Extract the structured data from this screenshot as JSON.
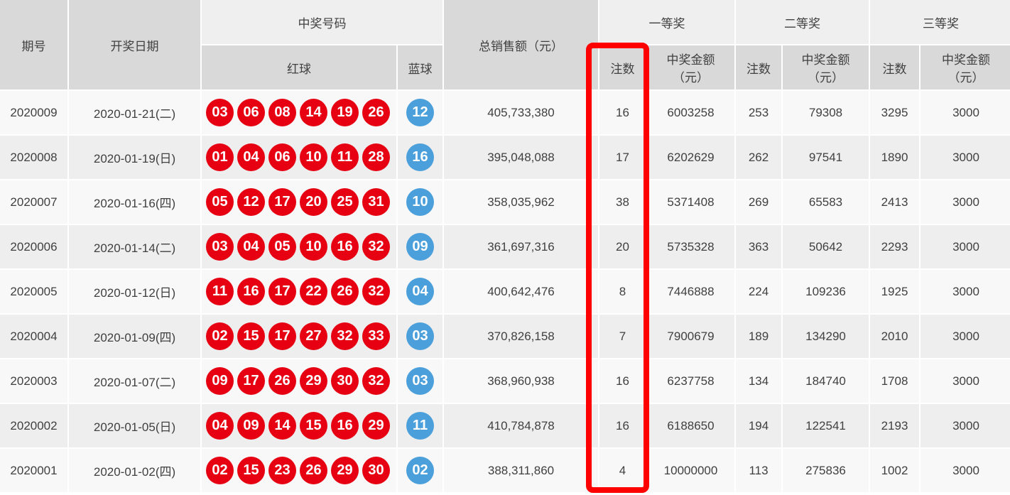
{
  "table": {
    "headers": {
      "issue": "期号",
      "date": "开奖日期",
      "winning_numbers": "中奖号码",
      "red_ball": "红球",
      "blue_ball": "蓝球",
      "total_sales": "总销售额（元）",
      "first_prize": "一等奖",
      "second_prize": "二等奖",
      "third_prize": "三等奖",
      "count": "注数",
      "amount_line1": "中奖金额",
      "amount_line2": "（元）"
    },
    "rows": [
      {
        "issue": "2020009",
        "date": "2020-01-21(二)",
        "red": [
          "03",
          "06",
          "08",
          "14",
          "19",
          "26"
        ],
        "blue": "12",
        "sales": "405,733,380",
        "p1_count": "16",
        "p1_amount": "6003258",
        "p2_count": "253",
        "p2_amount": "79308",
        "p3_count": "3295",
        "p3_amount": "3000"
      },
      {
        "issue": "2020008",
        "date": "2020-01-19(日)",
        "red": [
          "01",
          "04",
          "06",
          "10",
          "11",
          "28"
        ],
        "blue": "16",
        "sales": "395,048,088",
        "p1_count": "17",
        "p1_amount": "6202629",
        "p2_count": "262",
        "p2_amount": "97541",
        "p3_count": "1890",
        "p3_amount": "3000"
      },
      {
        "issue": "2020007",
        "date": "2020-01-16(四)",
        "red": [
          "05",
          "12",
          "17",
          "20",
          "25",
          "31"
        ],
        "blue": "10",
        "sales": "358,035,962",
        "p1_count": "38",
        "p1_amount": "5371408",
        "p2_count": "269",
        "p2_amount": "65583",
        "p3_count": "2413",
        "p3_amount": "3000"
      },
      {
        "issue": "2020006",
        "date": "2020-01-14(二)",
        "red": [
          "03",
          "04",
          "05",
          "10",
          "16",
          "32"
        ],
        "blue": "09",
        "sales": "361,697,316",
        "p1_count": "20",
        "p1_amount": "5735328",
        "p2_count": "363",
        "p2_amount": "50642",
        "p3_count": "2293",
        "p3_amount": "3000"
      },
      {
        "issue": "2020005",
        "date": "2020-01-12(日)",
        "red": [
          "11",
          "16",
          "17",
          "22",
          "26",
          "32"
        ],
        "blue": "04",
        "sales": "400,642,476",
        "p1_count": "8",
        "p1_amount": "7446888",
        "p2_count": "224",
        "p2_amount": "109236",
        "p3_count": "1925",
        "p3_amount": "3000"
      },
      {
        "issue": "2020004",
        "date": "2020-01-09(四)",
        "red": [
          "02",
          "15",
          "17",
          "27",
          "32",
          "33"
        ],
        "blue": "03",
        "sales": "370,826,158",
        "p1_count": "7",
        "p1_amount": "7900679",
        "p2_count": "189",
        "p2_amount": "134290",
        "p3_count": "2010",
        "p3_amount": "3000"
      },
      {
        "issue": "2020003",
        "date": "2020-01-07(二)",
        "red": [
          "09",
          "17",
          "26",
          "29",
          "30",
          "32"
        ],
        "blue": "03",
        "sales": "368,960,938",
        "p1_count": "16",
        "p1_amount": "6237758",
        "p2_count": "134",
        "p2_amount": "184740",
        "p3_count": "1708",
        "p3_amount": "3000"
      },
      {
        "issue": "2020002",
        "date": "2020-01-05(日)",
        "red": [
          "04",
          "09",
          "14",
          "15",
          "16",
          "29"
        ],
        "blue": "11",
        "sales": "410,784,878",
        "p1_count": "16",
        "p1_amount": "6188650",
        "p2_count": "194",
        "p2_amount": "122541",
        "p3_count": "2193",
        "p3_amount": "3000"
      },
      {
        "issue": "2020001",
        "date": "2020-01-02(四)",
        "red": [
          "02",
          "15",
          "23",
          "26",
          "29",
          "30"
        ],
        "blue": "02",
        "sales": "388,311,860",
        "p1_count": "4",
        "p1_amount": "10000000",
        "p2_count": "113",
        "p2_amount": "275836",
        "p3_count": "1002",
        "p3_amount": "3000"
      }
    ]
  },
  "highlight": {
    "target": "first-prize-count-column",
    "color": "#ff0000"
  },
  "colors": {
    "red_ball": "#e60012",
    "blue_ball": "#4b9fdb",
    "header_dark": "#d9d9d9",
    "header_light": "#efefef",
    "row_odd": "#f8f8f8",
    "row_even": "#eeeeee",
    "text": "#404040"
  }
}
